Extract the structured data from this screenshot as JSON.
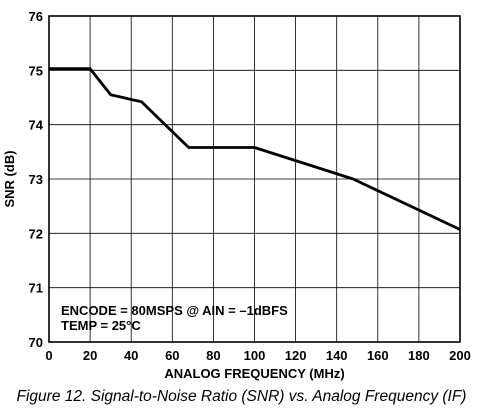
{
  "chart_data": {
    "type": "line",
    "xlabel": "ANALOG FREQUENCY (MHz)",
    "ylabel": "SNR (dB)",
    "xlim": [
      0,
      200
    ],
    "ylim": [
      70,
      76
    ],
    "x_ticks": [
      "0",
      "20",
      "40",
      "60",
      "80",
      "100",
      "120",
      "140",
      "160",
      "180",
      "200"
    ],
    "y_ticks": [
      "70",
      "71",
      "72",
      "73",
      "74",
      "75",
      "76"
    ],
    "grid": true,
    "legend": "none",
    "annotations": [
      "ENCODE = 80MSPS @ AIN = –1dBFS",
      "TEMP = 25°C"
    ],
    "series": [
      {
        "x": [
          0,
          20,
          30,
          45,
          68,
          100,
          148,
          200
        ],
        "y": [
          75.03,
          75.03,
          74.55,
          74.42,
          73.58,
          73.58,
          73.0,
          72.07
        ]
      }
    ]
  },
  "caption": "Figure 12. Signal-to-Noise Ratio (SNR) vs. Analog Frequency (IF)"
}
